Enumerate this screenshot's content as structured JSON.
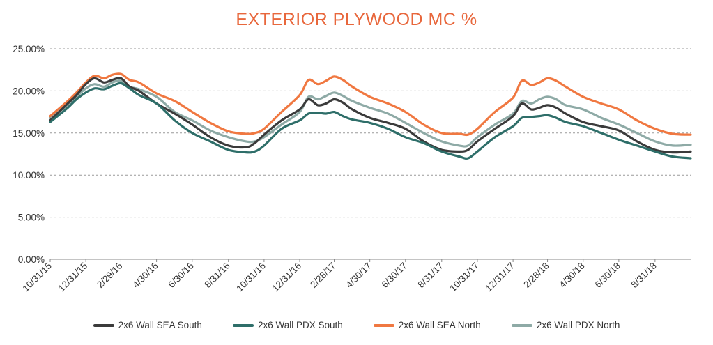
{
  "chart_data": {
    "type": "line",
    "title": "EXTERIOR PLYWOOD MC %",
    "title_color": "#E8673C",
    "xlabel": "",
    "ylabel": "",
    "ylim": [
      0,
      25
    ],
    "grid": true,
    "legend_position": "bottom",
    "y_ticks": [
      "0.00%",
      "5.00%",
      "10.00%",
      "15.00%",
      "20.00%",
      "25.00%"
    ],
    "y_tick_values": [
      0,
      5,
      10,
      15,
      20,
      25
    ],
    "x_ticks": [
      "10/31/15",
      "12/31/15",
      "2/29/16",
      "4/30/16",
      "6/30/16",
      "8/31/16",
      "10/31/16",
      "12/31/16",
      "2/28/17",
      "4/30/17",
      "6/30/17",
      "8/31/17",
      "10/31/17",
      "12/31/17",
      "2/28/18",
      "4/30/18",
      "6/30/18",
      "8/31/18"
    ],
    "x": [
      "10/31/15",
      "11/30/15",
      "12/15/15",
      "12/31/15",
      "1/15/16",
      "1/31/16",
      "2/14/16",
      "2/29/16",
      "3/15/16",
      "3/31/16",
      "4/30/16",
      "5/31/16",
      "6/30/16",
      "7/31/16",
      "8/31/16",
      "9/30/16",
      "10/15/16",
      "10/31/16",
      "11/30/16",
      "12/31/16",
      "1/15/17",
      "1/31/17",
      "2/14/17",
      "2/28/17",
      "3/15/17",
      "3/31/17",
      "4/30/17",
      "5/31/17",
      "6/30/17",
      "7/31/17",
      "8/31/17",
      "9/30/17",
      "10/15/17",
      "10/31/17",
      "11/30/17",
      "12/31/17",
      "1/15/18",
      "1/31/18",
      "2/14/18",
      "2/28/18",
      "3/15/18",
      "3/31/18",
      "4/30/18",
      "5/31/18",
      "6/30/18",
      "7/31/18",
      "8/31/18",
      "9/30/18",
      "10/31/18"
    ],
    "series": [
      {
        "name": "2x6 Wall SEA South",
        "color": "#3B3B3B",
        "values": [
          16.5,
          18.5,
          19.5,
          20.8,
          21.5,
          21.0,
          21.3,
          21.5,
          20.5,
          20.0,
          18.5,
          17.3,
          16.0,
          14.5,
          13.5,
          13.3,
          13.8,
          14.8,
          16.5,
          17.8,
          19.0,
          18.3,
          18.5,
          19.0,
          18.6,
          17.8,
          16.8,
          16.2,
          15.5,
          14.0,
          13.0,
          12.8,
          13.0,
          14.0,
          15.5,
          17.0,
          18.5,
          17.8,
          18.0,
          18.3,
          18.0,
          17.3,
          16.3,
          15.8,
          15.3,
          14.0,
          13.0,
          12.7,
          12.8
        ]
      },
      {
        "name": "2x6 Wall PDX South",
        "color": "#2E6E69",
        "values": [
          16.3,
          18.0,
          19.0,
          19.8,
          20.3,
          20.2,
          20.6,
          20.9,
          20.3,
          19.5,
          18.5,
          16.5,
          15.0,
          14.0,
          13.0,
          12.7,
          12.8,
          13.5,
          15.5,
          16.5,
          17.3,
          17.4,
          17.3,
          17.5,
          17.0,
          16.6,
          16.2,
          15.5,
          14.5,
          13.8,
          12.8,
          12.2,
          12.0,
          12.8,
          14.5,
          15.8,
          16.8,
          16.9,
          17.0,
          17.1,
          16.8,
          16.3,
          15.8,
          15.0,
          14.2,
          13.5,
          12.8,
          12.2,
          12.0
        ]
      },
      {
        "name": "2x6 Wall SEA North",
        "color": "#F07841",
        "values": [
          17.0,
          18.8,
          19.8,
          21.0,
          21.8,
          21.5,
          21.9,
          22.0,
          21.3,
          21.0,
          19.7,
          18.8,
          17.5,
          16.2,
          15.2,
          14.9,
          15.0,
          15.5,
          17.5,
          19.5,
          21.3,
          20.8,
          21.2,
          21.7,
          21.3,
          20.5,
          19.3,
          18.5,
          17.5,
          16.0,
          15.0,
          14.9,
          14.8,
          15.5,
          17.5,
          19.2,
          21.2,
          20.7,
          21.0,
          21.5,
          21.2,
          20.5,
          19.3,
          18.5,
          17.8,
          16.5,
          15.5,
          14.9,
          14.8
        ]
      },
      {
        "name": "2x6 Wall PDX North",
        "color": "#8EAAA6",
        "values": [
          16.8,
          18.3,
          19.3,
          20.3,
          20.8,
          20.5,
          21.0,
          21.2,
          20.5,
          20.2,
          19.3,
          17.5,
          16.5,
          15.3,
          14.5,
          14.0,
          14.0,
          14.5,
          16.0,
          17.5,
          19.3,
          19.0,
          19.4,
          19.8,
          19.4,
          18.8,
          18.0,
          17.3,
          16.2,
          15.0,
          14.0,
          13.5,
          13.5,
          14.5,
          16.0,
          17.3,
          18.8,
          18.5,
          19.0,
          19.3,
          19.0,
          18.3,
          17.8,
          16.8,
          16.0,
          15.0,
          14.0,
          13.5,
          13.6
        ]
      }
    ]
  }
}
